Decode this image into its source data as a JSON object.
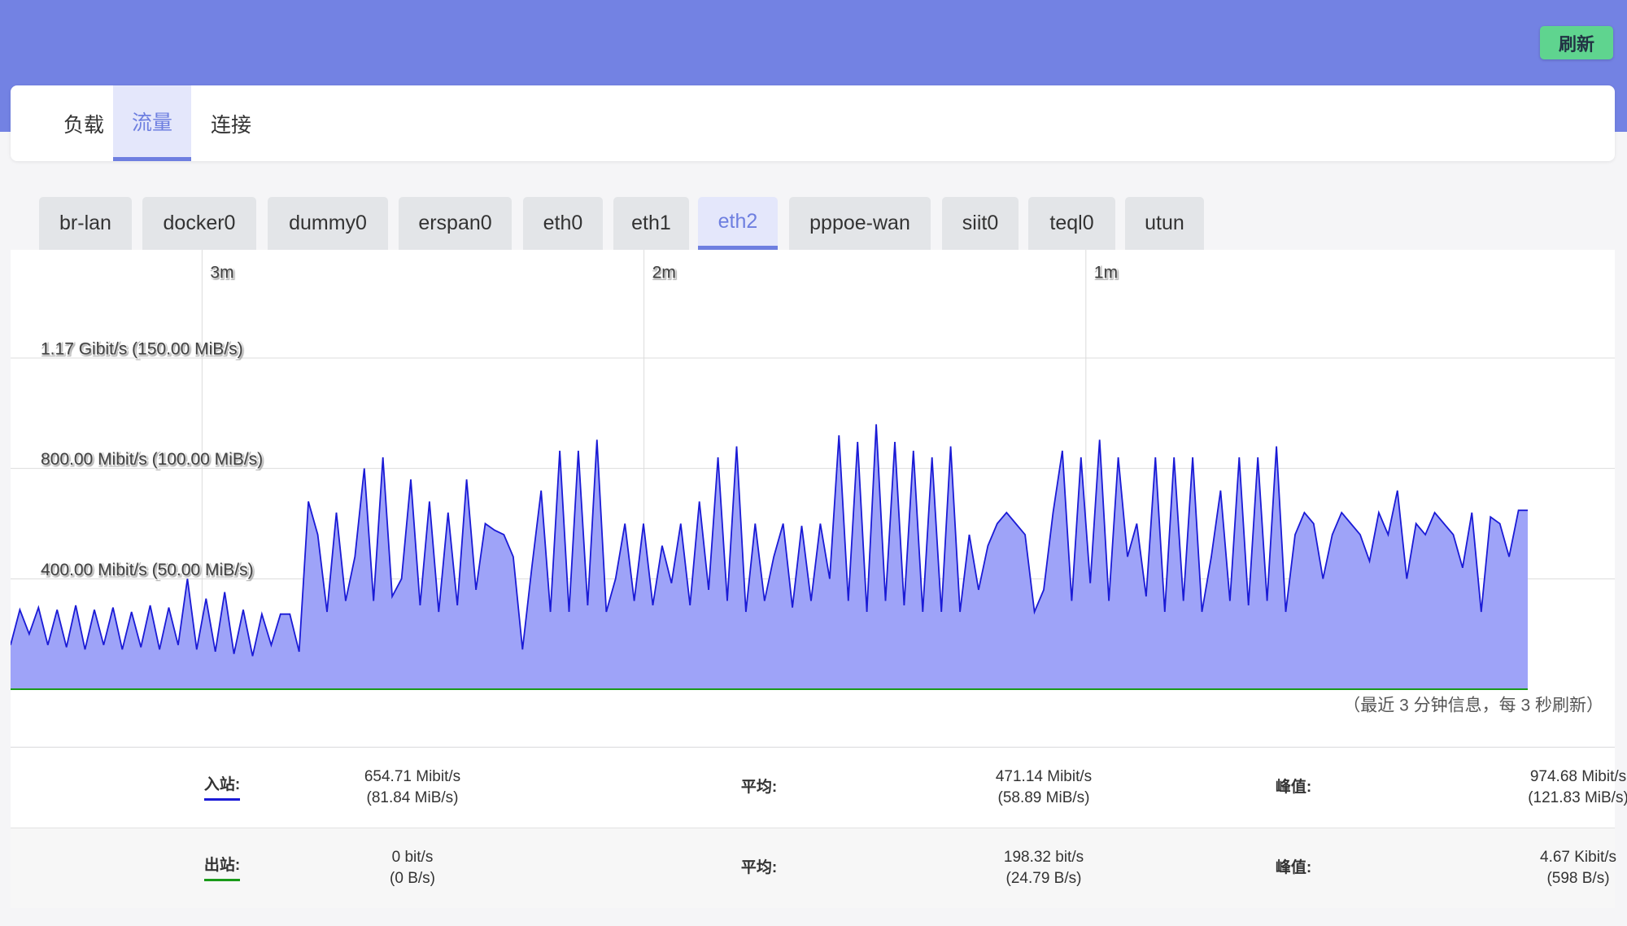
{
  "header": {
    "refresh_button": "刷新"
  },
  "main_tabs": {
    "items": [
      "负载",
      "流量",
      "连接"
    ],
    "active": 1
  },
  "interface_tabs": {
    "items": [
      "br-lan",
      "docker0",
      "dummy0",
      "erspan0",
      "eth0",
      "eth1",
      "eth2",
      "pppoe-wan",
      "siit0",
      "teql0",
      "utun"
    ],
    "active": 6
  },
  "graph": {
    "yticks": [
      {
        "value": 150,
        "label": "1.17 Gibit/s (150.00 MiB/s)"
      },
      {
        "value": 100,
        "label": "800.00 Mibit/s (100.00 MiB/s)"
      },
      {
        "value": 50,
        "label": "400.00 Mibit/s (50.00 MiB/s)"
      }
    ],
    "ylim": [
      0,
      199
    ],
    "xlim": [
      -206,
      0
    ],
    "xticks": [
      {
        "value": -180,
        "label": "3m"
      },
      {
        "value": -120,
        "label": "2m"
      },
      {
        "value": -60,
        "label": "1m"
      }
    ],
    "series": [
      {
        "name": "入站",
        "color": "#1a1ad6",
        "fill": "#9ea3f8",
        "values": [
          20,
          36,
          25,
          37,
          20,
          36,
          19,
          38,
          18,
          36,
          20,
          37,
          18,
          35,
          19,
          38,
          18,
          37,
          20,
          50,
          18,
          41,
          17,
          44,
          16,
          36,
          15,
          34,
          20,
          34,
          34,
          17,
          85,
          70,
          35,
          80,
          40,
          60,
          100,
          40,
          105,
          42,
          50,
          95,
          38,
          85,
          35,
          80,
          38,
          95,
          45,
          75,
          72,
          70,
          60,
          18,
          55,
          90,
          35,
          108,
          35,
          108,
          38,
          113,
          35,
          50,
          75,
          40,
          75,
          38,
          65,
          48,
          75,
          38,
          85,
          45,
          105,
          40,
          110,
          35,
          75,
          40,
          60,
          75,
          37,
          74,
          40,
          75,
          50,
          115,
          40,
          112,
          35,
          120,
          40,
          112,
          38,
          108,
          35,
          105,
          35,
          110,
          35,
          70,
          45,
          65,
          75,
          80,
          75,
          70,
          35,
          45,
          80,
          108,
          40,
          105,
          48,
          113,
          40,
          105,
          60,
          75,
          42,
          105,
          35,
          105,
          40,
          105,
          35,
          60,
          90,
          40,
          105,
          38,
          105,
          40,
          110,
          35,
          70,
          80,
          75,
          50,
          70,
          80,
          75,
          70,
          58,
          80,
          70,
          90,
          50,
          75,
          70,
          80,
          75,
          70,
          55,
          80,
          35,
          78,
          75,
          60,
          81,
          81
        ]
      }
    ],
    "note": "（最近 3 分钟信息，每 3 秒刷新）"
  },
  "stats": {
    "rows": [
      {
        "label": "入站:",
        "current": [
          "654.71 Mibit/s",
          "(81.84 MiB/s)"
        ],
        "avg_label": "平均:",
        "avg": [
          "471.14 Mibit/s",
          "(58.89 MiB/s)"
        ],
        "peak_label": "峰值:",
        "peak": [
          "974.68 Mibit/s",
          "(121.83 MiB/s)"
        ]
      },
      {
        "label": "出站:",
        "current": [
          "0 bit/s",
          "(0 B/s)"
        ],
        "avg_label": "平均:",
        "avg": [
          "198.32 bit/s",
          "(24.79 B/s)"
        ],
        "peak_label": "峰值:",
        "peak": [
          "4.67 Kibit/s",
          "(598 B/s)"
        ]
      }
    ]
  }
}
